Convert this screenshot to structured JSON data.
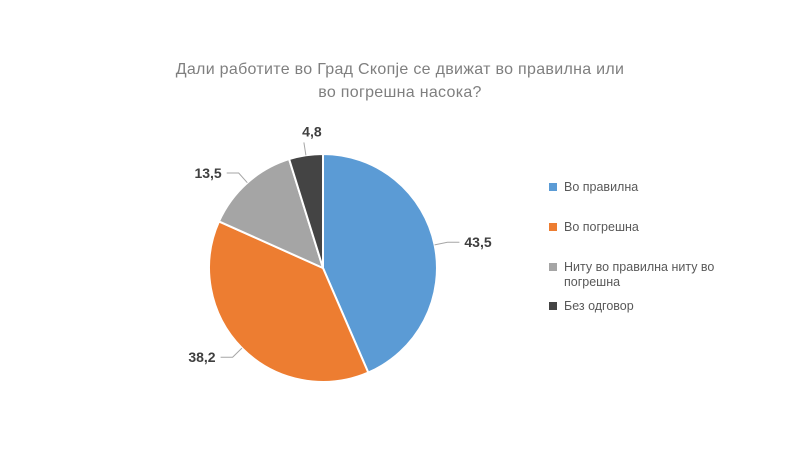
{
  "chart_data": {
    "type": "pie",
    "title": "Дали работите во Град Скопје се движат во правилна или во погрешна насока?",
    "slices": [
      {
        "label": "Во правилна",
        "value": 43.5,
        "display": "43,5",
        "color": "#5B9BD5"
      },
      {
        "label": "Во погрешна",
        "value": 38.2,
        "display": "38,2",
        "color": "#ED7D31"
      },
      {
        "label": "Ниту во правилна ниту во погрешна",
        "value": 13.5,
        "display": "13,5",
        "color": "#A5A5A5"
      },
      {
        "label": "Без одговор",
        "value": 4.8,
        "display": "4,8",
        "color": "#444444"
      }
    ],
    "start_angle_deg": 0,
    "direction": "clockwise",
    "legend_position": "right",
    "data_labels": "outside-end-with-leader-lines",
    "decimal_separator": ","
  },
  "colors": {
    "background": "#FFFFFF",
    "title_text": "#7F7F7F",
    "legend_text": "#595959",
    "data_label_text": "#3F3F3F",
    "leader_line": "#A6A6A6",
    "slice_border": "#FFFFFF"
  }
}
